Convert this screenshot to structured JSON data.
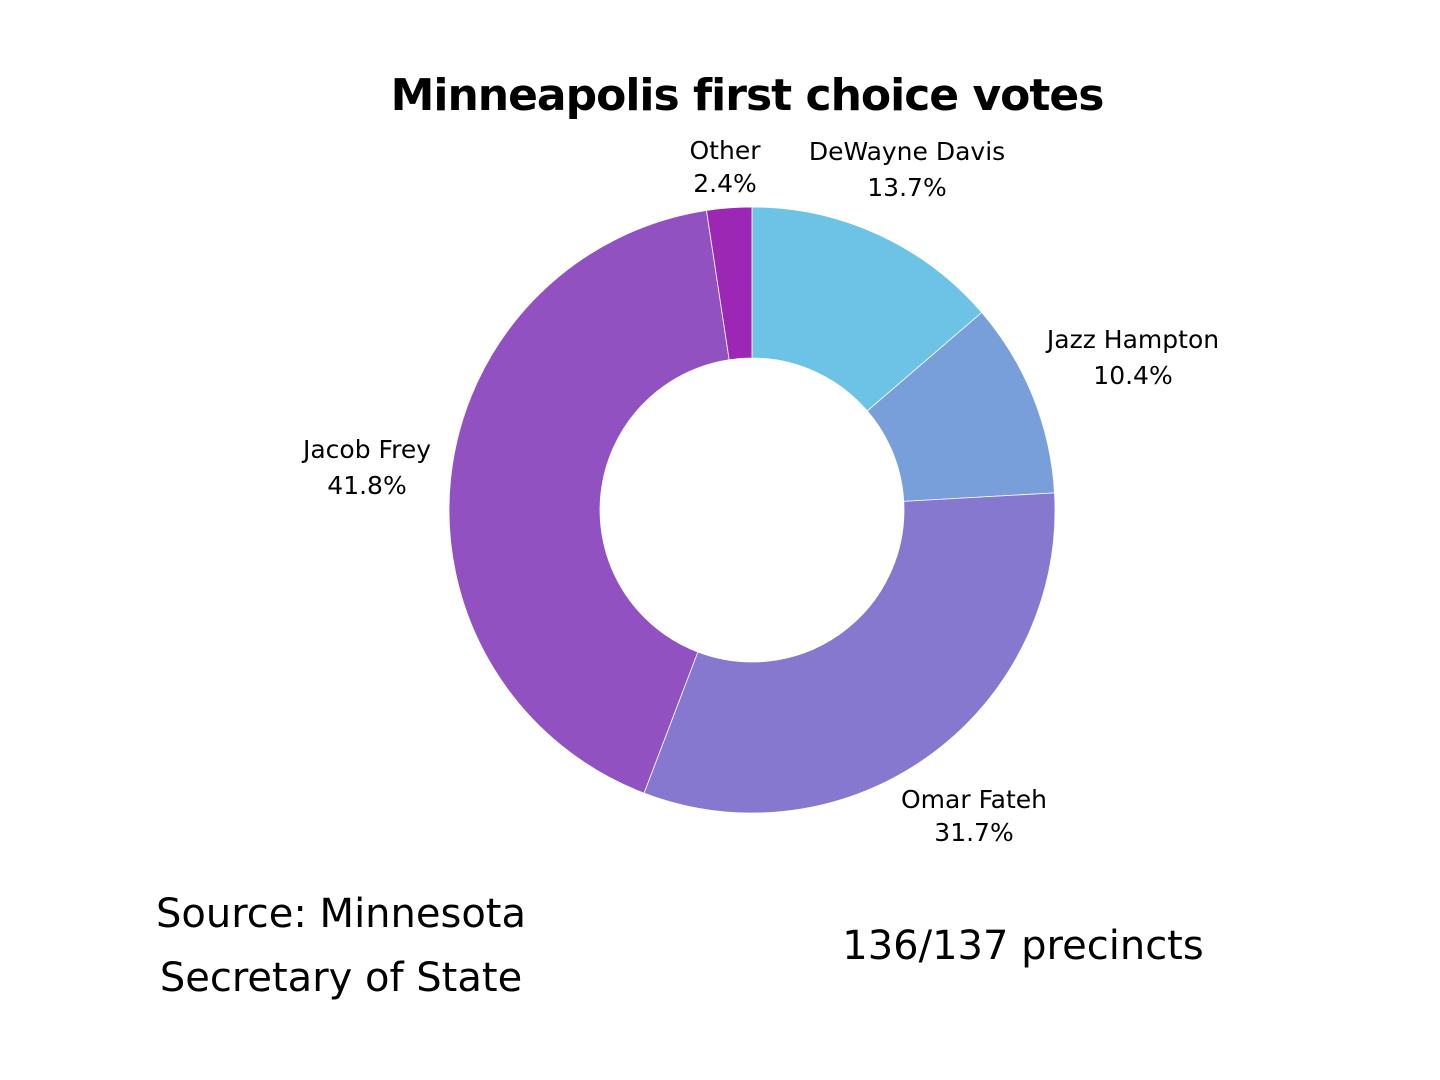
{
  "chart_data": {
    "type": "pie",
    "donut": true,
    "title": "Minneapolis first choice votes",
    "slices": [
      {
        "label": "DeWayne Davis",
        "value": 13.7,
        "display": "13.7%",
        "color": "#6CC3E6"
      },
      {
        "label": "Jazz Hampton",
        "value": 10.4,
        "display": "10.4%",
        "color": "#789FDA"
      },
      {
        "label": "Omar Fateh",
        "value": 31.7,
        "display": "31.7%",
        "color": "#8578CE"
      },
      {
        "label": "Jacob Frey",
        "value": 41.8,
        "display": "41.8%",
        "color": "#9151C1"
      },
      {
        "label": "Other",
        "value": 2.4,
        "display": "2.4%",
        "color": "#9C27B5"
      }
    ],
    "start": "top",
    "direction": "clockwise"
  },
  "footer": {
    "source_line1": "Source: Minnesota",
    "source_line2": "Secretary of State",
    "precincts": "136/137 precincts"
  }
}
